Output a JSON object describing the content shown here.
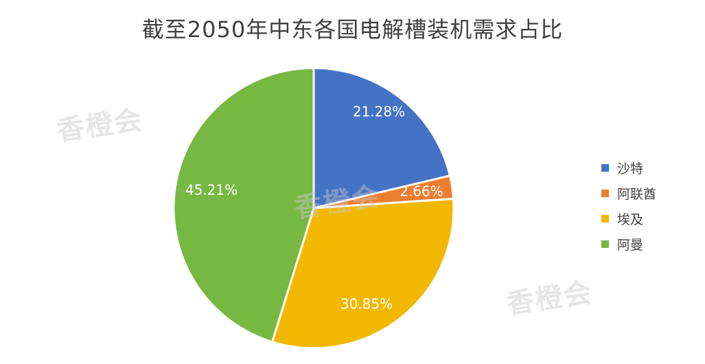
{
  "watermark": {
    "text": "香橙会"
  },
  "colors": {
    "slice_border": "#ffffff",
    "label_text": "#ffffff"
  },
  "chart_data": {
    "type": "pie",
    "title": "截至2050年中东各国电解槽装机需求占比",
    "legend_position": "right",
    "slices": [
      {
        "name": "沙特",
        "value": 21.28,
        "label": "21.28%",
        "color": "#4472C4"
      },
      {
        "name": "阿联酋",
        "value": 2.66,
        "label": "2.66%",
        "color": "#ED7D31"
      },
      {
        "name": "埃及",
        "value": 30.85,
        "label": "30.85%",
        "color": "#F2B800"
      },
      {
        "name": "阿曼",
        "value": 45.21,
        "label": "45.21%",
        "color": "#77B843"
      }
    ]
  }
}
